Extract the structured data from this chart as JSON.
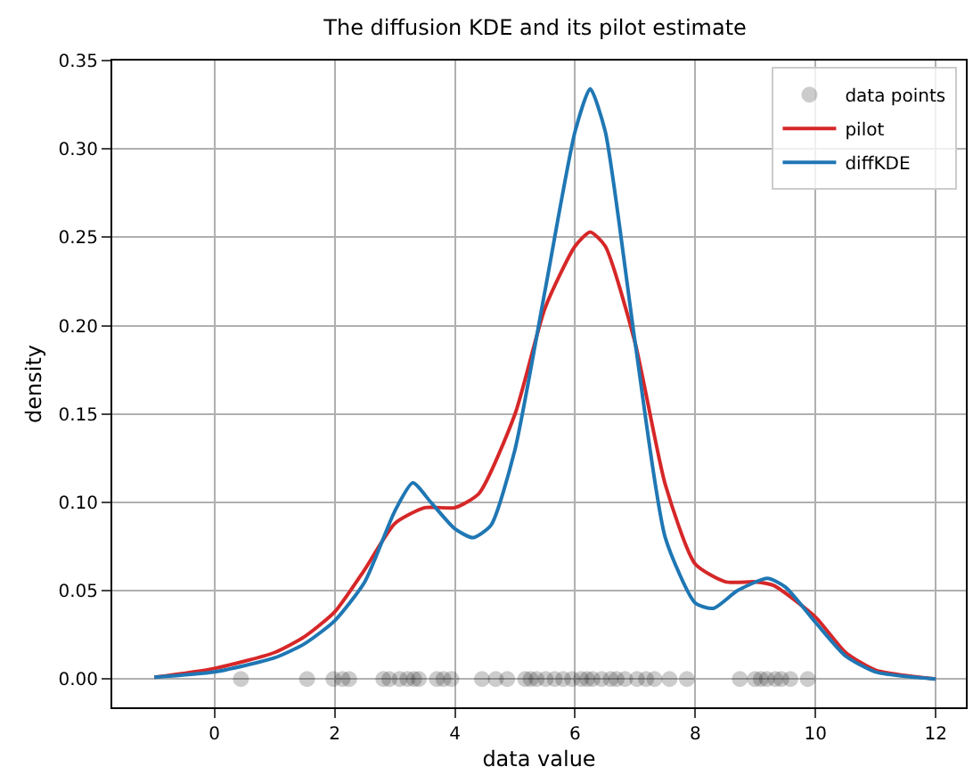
{
  "chart_data": {
    "type": "line",
    "title": "The diffusion KDE and its pilot estimate",
    "xlabel": "data value",
    "ylabel": "density",
    "xlim": [
      -1.7,
      12.5
    ],
    "xticks": [
      0,
      2,
      4,
      6,
      8,
      10,
      12
    ],
    "ylim": [
      -0.016,
      0.35
    ],
    "yticks": [
      {
        "value": 0,
        "label": "0.00"
      },
      {
        "value": 0.05,
        "label": "0.05"
      },
      {
        "value": 0.1,
        "label": "0.10"
      },
      {
        "value": 0.15,
        "label": "0.15"
      },
      {
        "value": 0.2,
        "label": "0.20"
      },
      {
        "value": 0.25,
        "label": "0.25"
      },
      {
        "value": 0.3,
        "label": "0.30"
      },
      {
        "value": 0.35,
        "label": "0.35"
      }
    ],
    "grid": true,
    "legend": "top right",
    "series": [
      {
        "name": "data points",
        "type": "scatter",
        "marker": "circle",
        "color": "#000000",
        "x": [
          0.44,
          1.54,
          1.98,
          2.13,
          2.24,
          2.81,
          2.91,
          3.08,
          3.21,
          3.32,
          3.4,
          3.7,
          3.81,
          3.94,
          4.45,
          4.68,
          4.87,
          5.17,
          5.26,
          5.36,
          5.51,
          5.66,
          5.8,
          5.95,
          6.1,
          6.2,
          6.29,
          6.44,
          6.59,
          6.69,
          6.83,
          7.03,
          7.18,
          7.32,
          7.57,
          7.86,
          8.74,
          8.99,
          9.09,
          9.19,
          9.33,
          9.43,
          9.58,
          9.87
        ],
        "values": [
          0,
          0,
          0,
          0,
          0,
          0,
          0,
          0,
          0,
          0,
          0,
          0,
          0,
          0,
          0,
          0,
          0,
          0,
          0,
          0,
          0,
          0,
          0,
          0,
          0,
          0,
          0,
          0,
          0,
          0,
          0,
          0,
          0,
          0,
          0,
          0,
          0,
          0,
          0,
          0,
          0,
          0,
          0,
          0
        ]
      },
      {
        "name": "pilot",
        "color": "#d62728",
        "x": [
          -1,
          0,
          1,
          1.5,
          2,
          2.5,
          3,
          3.5,
          4,
          4.4,
          5,
          5.5,
          6,
          6.25,
          6.5,
          7,
          7.5,
          8,
          8.5,
          9,
          9.3,
          10,
          10.5,
          11,
          12
        ],
        "values": [
          0.001,
          0.006,
          0.015,
          0.024,
          0.038,
          0.062,
          0.088,
          0.097,
          0.097,
          0.105,
          0.15,
          0.21,
          0.245,
          0.253,
          0.245,
          0.19,
          0.11,
          0.065,
          0.055,
          0.055,
          0.053,
          0.035,
          0.015,
          0.005,
          0
        ]
      },
      {
        "name": "diffKDE",
        "color": "#1f77b4",
        "x": [
          -1,
          0,
          1,
          1.5,
          2,
          2.5,
          3,
          3.3,
          3.6,
          4,
          4.3,
          4.6,
          5,
          5.5,
          6,
          6.25,
          6.5,
          7,
          7.5,
          8,
          8.3,
          8.7,
          9.2,
          9.5,
          10,
          10.5,
          11,
          12
        ],
        "values": [
          0.001,
          0.004,
          0.012,
          0.02,
          0.033,
          0.055,
          0.095,
          0.111,
          0.1,
          0.085,
          0.08,
          0.087,
          0.13,
          0.22,
          0.31,
          0.334,
          0.31,
          0.19,
          0.08,
          0.043,
          0.04,
          0.05,
          0.057,
          0.052,
          0.032,
          0.013,
          0.004,
          0
        ]
      }
    ]
  }
}
